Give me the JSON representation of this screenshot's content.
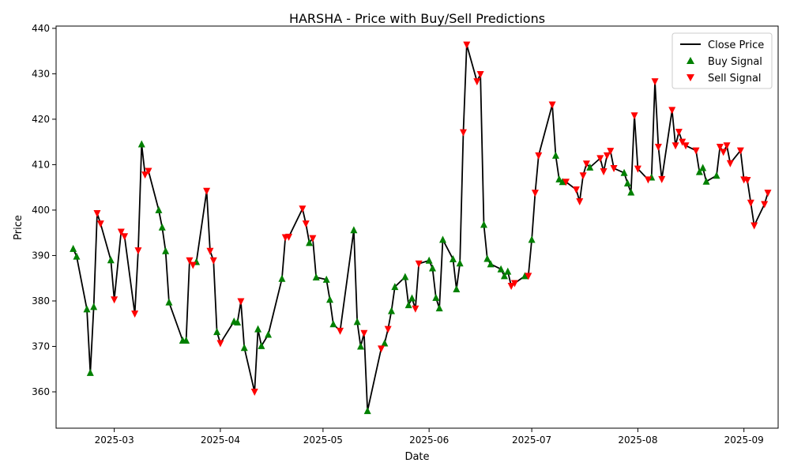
{
  "chart_data": {
    "type": "line",
    "title": "HARSHA - Price with Buy/Sell Predictions",
    "xlabel": "Date",
    "ylabel": "Price",
    "xlim": [
      "2025-02-12",
      "2025-09-11"
    ],
    "ylim": [
      352,
      440.5
    ],
    "x_ticks": [
      "2025-03-01",
      "2025-04-01",
      "2025-05-01",
      "2025-06-01",
      "2025-07-01",
      "2025-08-01",
      "2025-09-01"
    ],
    "x_tick_labels": [
      "2025-03",
      "2025-04",
      "2025-05",
      "2025-06",
      "2025-07",
      "2025-08",
      "2025-09"
    ],
    "y_ticks": [
      360,
      370,
      380,
      390,
      400,
      410,
      420,
      430,
      440
    ],
    "grid": false,
    "legend": {
      "position": "top-right",
      "entries": [
        "Close Price",
        "Buy Signal",
        "Sell Signal"
      ]
    },
    "colors": {
      "line": "#000000",
      "buy": "#008000",
      "sell": "#ff0000"
    },
    "series": [
      {
        "name": "Close Price",
        "points": [
          [
            "2025-02-17",
            391.5
          ],
          [
            "2025-02-18",
            389.8
          ],
          [
            "2025-02-21",
            378.2
          ],
          [
            "2025-02-22",
            364.2
          ],
          [
            "2025-02-23",
            378.7
          ],
          [
            "2025-02-24",
            399.3
          ],
          [
            "2025-02-25",
            397.0
          ],
          [
            "2025-02-28",
            389.0
          ],
          [
            "2025-03-01",
            380.3
          ],
          [
            "2025-03-03",
            395.2
          ],
          [
            "2025-03-04",
            394.2
          ],
          [
            "2025-03-07",
            377.2
          ],
          [
            "2025-03-08",
            391.1
          ],
          [
            "2025-03-09",
            414.5
          ],
          [
            "2025-03-10",
            407.8
          ],
          [
            "2025-03-11",
            408.6
          ],
          [
            "2025-03-14",
            400.0
          ],
          [
            "2025-03-15",
            396.2
          ],
          [
            "2025-03-16",
            391.0
          ],
          [
            "2025-03-17",
            379.7
          ],
          [
            "2025-03-21",
            371.3
          ],
          [
            "2025-03-22",
            371.3
          ],
          [
            "2025-03-23",
            388.9
          ],
          [
            "2025-03-24",
            387.9
          ],
          [
            "2025-03-25",
            388.6
          ],
          [
            "2025-03-28",
            404.2
          ],
          [
            "2025-03-29",
            391.0
          ],
          [
            "2025-03-30",
            388.9
          ],
          [
            "2025-03-31",
            373.2
          ],
          [
            "2025-04-01",
            370.7
          ],
          [
            "2025-04-05",
            375.5
          ],
          [
            "2025-04-06",
            375.3
          ],
          [
            "2025-04-07",
            379.9
          ],
          [
            "2025-04-08",
            369.7
          ],
          [
            "2025-04-11",
            360.0
          ],
          [
            "2025-04-12",
            373.8
          ],
          [
            "2025-04-13",
            370.1
          ],
          [
            "2025-04-15",
            372.6
          ],
          [
            "2025-04-19",
            384.9
          ],
          [
            "2025-04-20",
            394.0
          ],
          [
            "2025-04-21",
            394.1
          ],
          [
            "2025-04-25",
            400.3
          ],
          [
            "2025-04-26",
            397.0
          ],
          [
            "2025-04-27",
            392.8
          ],
          [
            "2025-04-28",
            393.8
          ],
          [
            "2025-04-29",
            385.2
          ],
          [
            "2025-05-02",
            384.7
          ],
          [
            "2025-05-03",
            380.3
          ],
          [
            "2025-05-04",
            374.9
          ],
          [
            "2025-05-06",
            373.4
          ],
          [
            "2025-05-10",
            395.6
          ],
          [
            "2025-05-11",
            375.4
          ],
          [
            "2025-05-12",
            370.0
          ],
          [
            "2025-05-13",
            372.9
          ],
          [
            "2025-05-14",
            355.8
          ],
          [
            "2025-05-18",
            369.5
          ],
          [
            "2025-05-19",
            370.7
          ],
          [
            "2025-05-20",
            373.8
          ],
          [
            "2025-05-21",
            377.8
          ],
          [
            "2025-05-22",
            383.1
          ],
          [
            "2025-05-25",
            385.3
          ],
          [
            "2025-05-26",
            379.1
          ],
          [
            "2025-05-27",
            380.6
          ],
          [
            "2025-05-28",
            378.3
          ],
          [
            "2025-05-29",
            388.2
          ],
          [
            "2025-06-01",
            388.9
          ],
          [
            "2025-06-02",
            387.2
          ],
          [
            "2025-06-03",
            380.7
          ],
          [
            "2025-06-04",
            378.4
          ],
          [
            "2025-06-05",
            393.5
          ],
          [
            "2025-06-08",
            389.2
          ],
          [
            "2025-06-09",
            382.6
          ],
          [
            "2025-06-10",
            388.3
          ],
          [
            "2025-06-11",
            417.1
          ],
          [
            "2025-06-12",
            436.4
          ],
          [
            "2025-06-15",
            428.3
          ],
          [
            "2025-06-16",
            429.9
          ],
          [
            "2025-06-17",
            396.8
          ],
          [
            "2025-06-18",
            389.3
          ],
          [
            "2025-06-19",
            388.1
          ],
          [
            "2025-06-22",
            387.0
          ],
          [
            "2025-06-23",
            385.5
          ],
          [
            "2025-06-24",
            386.5
          ],
          [
            "2025-06-25",
            383.3
          ],
          [
            "2025-06-26",
            383.9
          ],
          [
            "2025-06-29",
            385.5
          ],
          [
            "2025-06-30",
            385.5
          ],
          [
            "2025-07-01",
            393.5
          ],
          [
            "2025-07-02",
            403.8
          ],
          [
            "2025-07-03",
            412.0
          ],
          [
            "2025-07-07",
            423.2
          ],
          [
            "2025-07-08",
            412.0
          ],
          [
            "2025-07-09",
            406.8
          ],
          [
            "2025-07-10",
            406.2
          ],
          [
            "2025-07-11",
            406.2
          ],
          [
            "2025-07-14",
            404.5
          ],
          [
            "2025-07-15",
            401.9
          ],
          [
            "2025-07-16",
            407.6
          ],
          [
            "2025-07-17",
            410.2
          ],
          [
            "2025-07-18",
            409.4
          ],
          [
            "2025-07-21",
            411.4
          ],
          [
            "2025-07-22",
            408.5
          ],
          [
            "2025-07-23",
            412.0
          ],
          [
            "2025-07-24",
            413.0
          ],
          [
            "2025-07-25",
            409.2
          ],
          [
            "2025-07-28",
            408.2
          ],
          [
            "2025-07-29",
            405.9
          ],
          [
            "2025-07-30",
            403.9
          ],
          [
            "2025-07-31",
            420.8
          ],
          [
            "2025-08-01",
            409.1
          ],
          [
            "2025-08-04",
            406.7
          ],
          [
            "2025-08-05",
            407.2
          ],
          [
            "2025-08-06",
            428.3
          ],
          [
            "2025-08-07",
            413.9
          ],
          [
            "2025-08-08",
            406.8
          ],
          [
            "2025-08-11",
            422.0
          ],
          [
            "2025-08-12",
            414.2
          ],
          [
            "2025-08-13",
            417.2
          ],
          [
            "2025-08-14",
            415.0
          ],
          [
            "2025-08-15",
            414.2
          ],
          [
            "2025-08-18",
            413.1
          ],
          [
            "2025-08-19",
            408.4
          ],
          [
            "2025-08-20",
            409.3
          ],
          [
            "2025-08-21",
            406.3
          ],
          [
            "2025-08-24",
            407.6
          ],
          [
            "2025-08-25",
            413.9
          ],
          [
            "2025-08-26",
            412.8
          ],
          [
            "2025-08-27",
            414.2
          ],
          [
            "2025-08-28",
            410.3
          ],
          [
            "2025-08-31",
            413.1
          ],
          [
            "2025-09-01",
            406.7
          ],
          [
            "2025-09-02",
            406.6
          ],
          [
            "2025-09-03",
            401.6
          ],
          [
            "2025-09-04",
            396.6
          ],
          [
            "2025-09-07",
            401.3
          ],
          [
            "2025-09-08",
            403.8
          ]
        ]
      },
      {
        "name": "Buy Signal",
        "points": [
          [
            "2025-02-17",
            391.5
          ],
          [
            "2025-02-18",
            389.8
          ],
          [
            "2025-02-21",
            378.2
          ],
          [
            "2025-02-22",
            364.2
          ],
          [
            "2025-02-23",
            378.7
          ],
          [
            "2025-02-28",
            389.0
          ],
          [
            "2025-03-09",
            414.5
          ],
          [
            "2025-03-14",
            400.0
          ],
          [
            "2025-03-15",
            396.2
          ],
          [
            "2025-03-16",
            391.0
          ],
          [
            "2025-03-17",
            379.7
          ],
          [
            "2025-03-21",
            371.3
          ],
          [
            "2025-03-22",
            371.3
          ],
          [
            "2025-03-25",
            388.6
          ],
          [
            "2025-03-31",
            373.2
          ],
          [
            "2025-04-05",
            375.5
          ],
          [
            "2025-04-06",
            375.3
          ],
          [
            "2025-04-08",
            369.7
          ],
          [
            "2025-04-12",
            373.8
          ],
          [
            "2025-04-13",
            370.1
          ],
          [
            "2025-04-15",
            372.6
          ],
          [
            "2025-04-19",
            384.9
          ],
          [
            "2025-04-27",
            392.8
          ],
          [
            "2025-04-29",
            385.2
          ],
          [
            "2025-05-02",
            384.7
          ],
          [
            "2025-05-03",
            380.3
          ],
          [
            "2025-05-04",
            374.9
          ],
          [
            "2025-05-10",
            395.6
          ],
          [
            "2025-05-11",
            375.4
          ],
          [
            "2025-05-12",
            370.0
          ],
          [
            "2025-05-14",
            355.8
          ],
          [
            "2025-05-19",
            370.7
          ],
          [
            "2025-05-21",
            377.8
          ],
          [
            "2025-05-22",
            383.1
          ],
          [
            "2025-05-25",
            385.3
          ],
          [
            "2025-05-26",
            379.1
          ],
          [
            "2025-05-27",
            380.6
          ],
          [
            "2025-06-01",
            388.9
          ],
          [
            "2025-06-02",
            387.2
          ],
          [
            "2025-06-03",
            380.7
          ],
          [
            "2025-06-04",
            378.4
          ],
          [
            "2025-06-05",
            393.5
          ],
          [
            "2025-06-08",
            389.2
          ],
          [
            "2025-06-09",
            382.6
          ],
          [
            "2025-06-10",
            388.3
          ],
          [
            "2025-06-17",
            396.8
          ],
          [
            "2025-06-18",
            389.3
          ],
          [
            "2025-06-19",
            388.1
          ],
          [
            "2025-06-22",
            387.0
          ],
          [
            "2025-06-23",
            385.5
          ],
          [
            "2025-06-24",
            386.5
          ],
          [
            "2025-06-29",
            385.5
          ],
          [
            "2025-07-01",
            393.5
          ],
          [
            "2025-07-08",
            412.0
          ],
          [
            "2025-07-09",
            406.8
          ],
          [
            "2025-07-10",
            406.2
          ],
          [
            "2025-07-18",
            409.4
          ],
          [
            "2025-07-28",
            408.2
          ],
          [
            "2025-07-29",
            405.9
          ],
          [
            "2025-07-30",
            403.9
          ],
          [
            "2025-08-05",
            407.2
          ],
          [
            "2025-08-19",
            408.4
          ],
          [
            "2025-08-20",
            409.3
          ],
          [
            "2025-08-21",
            406.3
          ],
          [
            "2025-08-24",
            407.6
          ]
        ]
      },
      {
        "name": "Sell Signal",
        "points": [
          [
            "2025-02-24",
            399.3
          ],
          [
            "2025-02-25",
            397.0
          ],
          [
            "2025-03-01",
            380.3
          ],
          [
            "2025-03-03",
            395.2
          ],
          [
            "2025-03-04",
            394.2
          ],
          [
            "2025-03-07",
            377.2
          ],
          [
            "2025-03-08",
            391.1
          ],
          [
            "2025-03-10",
            407.8
          ],
          [
            "2025-03-11",
            408.6
          ],
          [
            "2025-03-23",
            388.9
          ],
          [
            "2025-03-24",
            387.9
          ],
          [
            "2025-03-28",
            404.2
          ],
          [
            "2025-03-29",
            391.0
          ],
          [
            "2025-03-30",
            388.9
          ],
          [
            "2025-04-01",
            370.7
          ],
          [
            "2025-04-07",
            379.9
          ],
          [
            "2025-04-11",
            360.0
          ],
          [
            "2025-04-20",
            394.0
          ],
          [
            "2025-04-21",
            394.1
          ],
          [
            "2025-04-25",
            400.3
          ],
          [
            "2025-04-26",
            397.0
          ],
          [
            "2025-04-28",
            393.8
          ],
          [
            "2025-05-06",
            373.4
          ],
          [
            "2025-05-13",
            372.9
          ],
          [
            "2025-05-18",
            369.5
          ],
          [
            "2025-05-20",
            373.8
          ],
          [
            "2025-05-28",
            378.3
          ],
          [
            "2025-05-29",
            388.2
          ],
          [
            "2025-06-11",
            417.1
          ],
          [
            "2025-06-12",
            436.4
          ],
          [
            "2025-06-15",
            428.3
          ],
          [
            "2025-06-16",
            429.9
          ],
          [
            "2025-06-25",
            383.3
          ],
          [
            "2025-06-26",
            383.9
          ],
          [
            "2025-06-30",
            385.5
          ],
          [
            "2025-07-02",
            403.8
          ],
          [
            "2025-07-03",
            412.0
          ],
          [
            "2025-07-07",
            423.2
          ],
          [
            "2025-07-11",
            406.2
          ],
          [
            "2025-07-14",
            404.5
          ],
          [
            "2025-07-15",
            401.9
          ],
          [
            "2025-07-16",
            407.6
          ],
          [
            "2025-07-17",
            410.2
          ],
          [
            "2025-07-21",
            411.4
          ],
          [
            "2025-07-22",
            408.5
          ],
          [
            "2025-07-23",
            412.0
          ],
          [
            "2025-07-24",
            413.0
          ],
          [
            "2025-07-25",
            409.2
          ],
          [
            "2025-07-31",
            420.8
          ],
          [
            "2025-08-01",
            409.1
          ],
          [
            "2025-08-04",
            406.7
          ],
          [
            "2025-08-06",
            428.3
          ],
          [
            "2025-08-07",
            413.9
          ],
          [
            "2025-08-08",
            406.8
          ],
          [
            "2025-08-11",
            422.0
          ],
          [
            "2025-08-12",
            414.2
          ],
          [
            "2025-08-13",
            417.2
          ],
          [
            "2025-08-14",
            415.0
          ],
          [
            "2025-08-15",
            414.2
          ],
          [
            "2025-08-18",
            413.1
          ],
          [
            "2025-08-25",
            413.9
          ],
          [
            "2025-08-26",
            412.8
          ],
          [
            "2025-08-27",
            414.2
          ],
          [
            "2025-08-28",
            410.3
          ],
          [
            "2025-08-31",
            413.1
          ],
          [
            "2025-09-01",
            406.7
          ],
          [
            "2025-09-02",
            406.6
          ],
          [
            "2025-09-03",
            401.6
          ],
          [
            "2025-09-04",
            396.6
          ],
          [
            "2025-09-07",
            401.3
          ],
          [
            "2025-09-08",
            403.8
          ]
        ]
      }
    ]
  }
}
